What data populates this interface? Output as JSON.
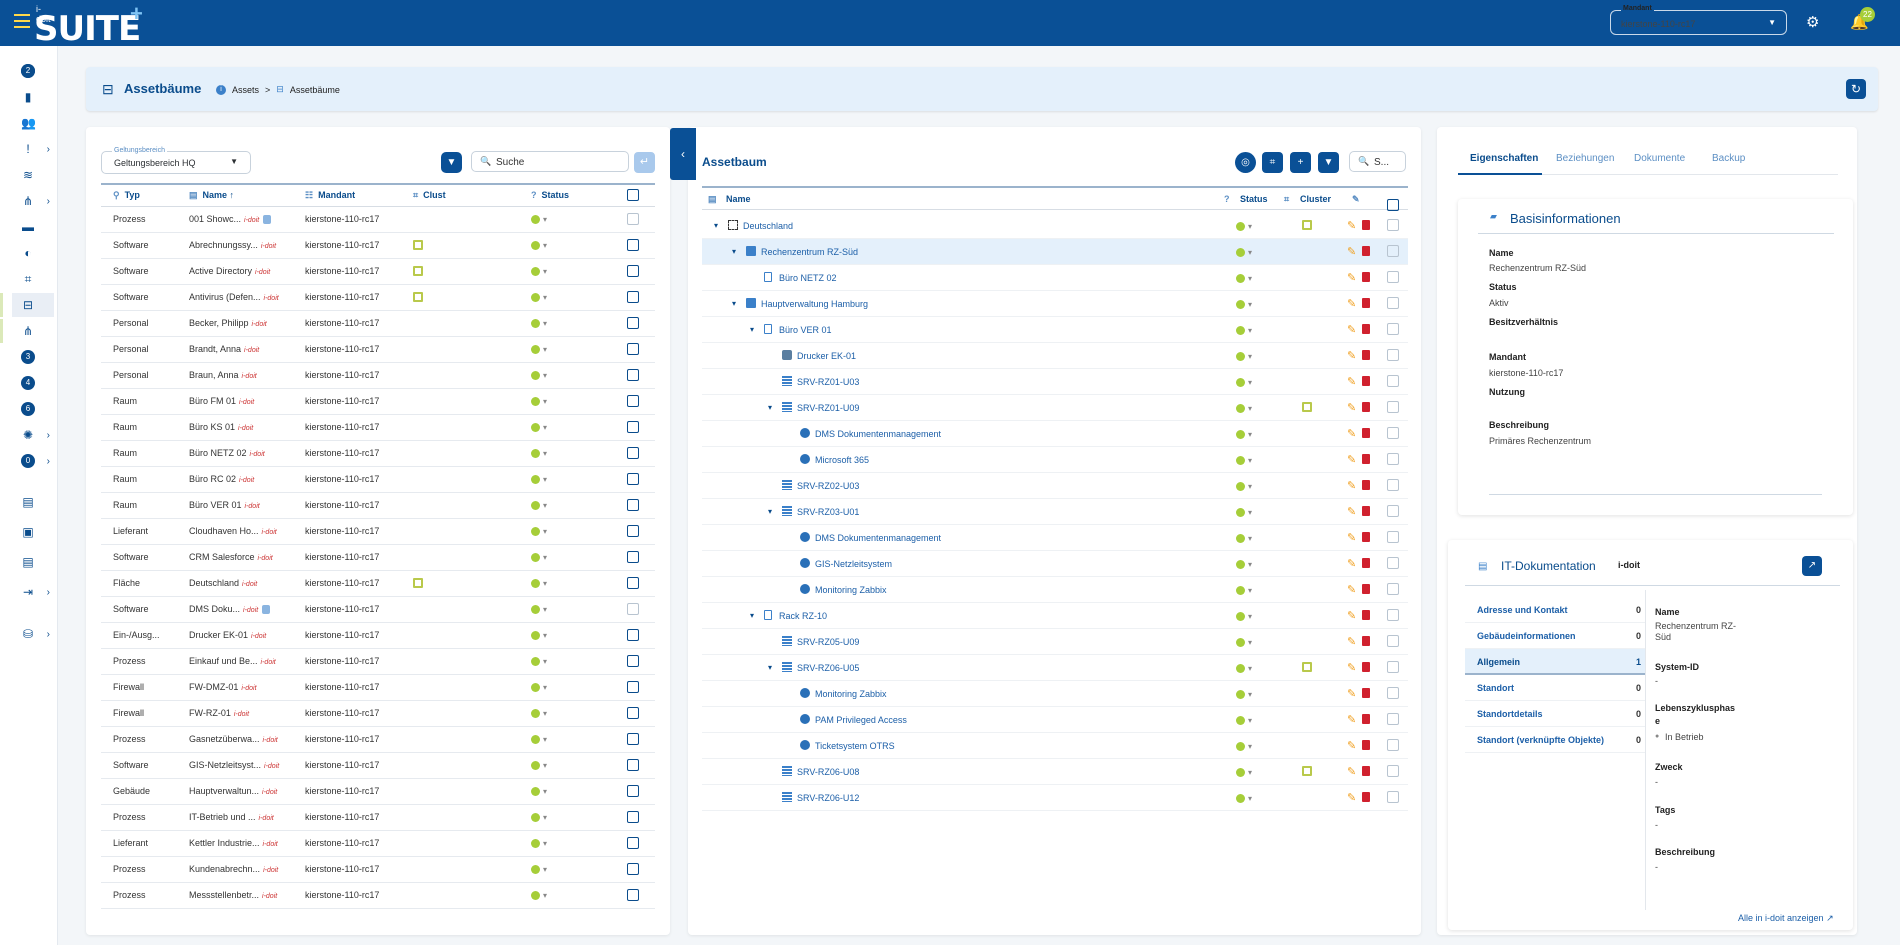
{
  "app": {
    "logo_small": "i-doit",
    "logo_text": "SUITE",
    "logo_plus": "+"
  },
  "topbar": {
    "mandant_label": "Mandant",
    "mandant_value": "kierstone-110-rc17",
    "notification_count": "22"
  },
  "sidebar": {
    "items": [
      {
        "icon": "1",
        "name": "sidebar-item-1"
      },
      {
        "icon": "2",
        "name": "sidebar-item-2"
      },
      {
        "icon": "chart-icon",
        "name": "sidebar-item-charts"
      },
      {
        "icon": "users-icon",
        "name": "sidebar-item-users"
      },
      {
        "icon": "alert-icon",
        "name": "sidebar-item-alerts"
      },
      {
        "icon": "layers-icon",
        "name": "sidebar-item-layers"
      },
      {
        "icon": "hierarchy-icon",
        "name": "sidebar-item-hierarchy"
      },
      {
        "icon": "truck-icon",
        "name": "sidebar-item-truck"
      },
      {
        "icon": "circle-icon",
        "name": "sidebar-item-circle"
      },
      {
        "icon": "scan-icon",
        "name": "sidebar-item-scan"
      },
      {
        "icon": "tree-icon",
        "name": "sidebar-item-asset-tree"
      },
      {
        "icon": "network-icon",
        "name": "sidebar-item-network"
      },
      {
        "icon": "3",
        "name": "sidebar-item-3"
      },
      {
        "icon": "4",
        "name": "sidebar-item-4"
      },
      {
        "icon": "6",
        "name": "sidebar-item-6"
      },
      {
        "icon": "bulb-icon",
        "name": "sidebar-item-bulb"
      },
      {
        "icon": "0",
        "name": "sidebar-item-0"
      },
      {
        "icon": "clipboard-icon",
        "name": "sidebar-item-clipboard"
      },
      {
        "icon": "image-icon",
        "name": "sidebar-item-image"
      },
      {
        "icon": "document-icon",
        "name": "sidebar-item-document"
      },
      {
        "icon": "import-icon",
        "name": "sidebar-item-import"
      },
      {
        "icon": "database-icon",
        "name": "sidebar-item-database"
      }
    ]
  },
  "header": {
    "title": "Assetbäume",
    "breadcrumb": [
      "Assets",
      ">",
      "Assetbäume"
    ]
  },
  "left": {
    "scope_label": "Geltungsbereich",
    "scope_value": "Geltungsbereich HQ",
    "search_placeholder": "Suche",
    "columns": [
      "Typ",
      "Name",
      "Mandant",
      "Clust",
      "Status"
    ],
    "sort_indicator": "↑",
    "rows": [
      {
        "typ": "Prozess",
        "name": "001 Showc...",
        "mandant": "kierstone-110-rc17",
        "cluster": false,
        "lock": true,
        "dim": true
      },
      {
        "typ": "Software",
        "name": "Abrechnungssy...",
        "mandant": "kierstone-110-rc17",
        "cluster": true
      },
      {
        "typ": "Software",
        "name": "Active Directory",
        "mandant": "kierstone-110-rc17",
        "cluster": true
      },
      {
        "typ": "Software",
        "name": "Antivirus (Defen...",
        "mandant": "kierstone-110-rc17",
        "cluster": true
      },
      {
        "typ": "Personal",
        "name": "Becker, Philipp",
        "mandant": "kierstone-110-rc17"
      },
      {
        "typ": "Personal",
        "name": "Brandt, Anna",
        "mandant": "kierstone-110-rc17"
      },
      {
        "typ": "Personal",
        "name": "Braun, Anna",
        "mandant": "kierstone-110-rc17"
      },
      {
        "typ": "Raum",
        "name": "Büro FM 01",
        "mandant": "kierstone-110-rc17"
      },
      {
        "typ": "Raum",
        "name": "Büro KS 01",
        "mandant": "kierstone-110-rc17"
      },
      {
        "typ": "Raum",
        "name": "Büro NETZ 02",
        "mandant": "kierstone-110-rc17"
      },
      {
        "typ": "Raum",
        "name": "Büro RC 02",
        "mandant": "kierstone-110-rc17"
      },
      {
        "typ": "Raum",
        "name": "Büro VER 01",
        "mandant": "kierstone-110-rc17"
      },
      {
        "typ": "Lieferant",
        "name": "Cloudhaven Ho...",
        "mandant": "kierstone-110-rc17"
      },
      {
        "typ": "Software",
        "name": "CRM Salesforce",
        "mandant": "kierstone-110-rc17"
      },
      {
        "typ": "Fläche",
        "name": "Deutschland",
        "mandant": "kierstone-110-rc17",
        "cluster": true
      },
      {
        "typ": "Software",
        "name": "DMS Doku...",
        "mandant": "kierstone-110-rc17",
        "lock": true,
        "dim": true
      },
      {
        "typ": "Ein-/Ausg...",
        "name": "Drucker EK-01",
        "mandant": "kierstone-110-rc17"
      },
      {
        "typ": "Prozess",
        "name": "Einkauf und Be...",
        "mandant": "kierstone-110-rc17"
      },
      {
        "typ": "Firewall",
        "name": "FW-DMZ-01",
        "mandant": "kierstone-110-rc17"
      },
      {
        "typ": "Firewall",
        "name": "FW-RZ-01",
        "mandant": "kierstone-110-rc17"
      },
      {
        "typ": "Prozess",
        "name": "Gasnetzüberwa...",
        "mandant": "kierstone-110-rc17"
      },
      {
        "typ": "Software",
        "name": "GIS-Netzleitsyst...",
        "mandant": "kierstone-110-rc17"
      },
      {
        "typ": "Gebäude",
        "name": "Hauptverwaltun...",
        "mandant": "kierstone-110-rc17"
      },
      {
        "typ": "Prozess",
        "name": "IT-Betrieb und ...",
        "mandant": "kierstone-110-rc17"
      },
      {
        "typ": "Lieferant",
        "name": "Kettler Industrie...",
        "mandant": "kierstone-110-rc17"
      },
      {
        "typ": "Prozess",
        "name": "Kundenabrechn...",
        "mandant": "kierstone-110-rc17"
      },
      {
        "typ": "Prozess",
        "name": "Messstellenbetr...",
        "mandant": "kierstone-110-rc17"
      }
    ]
  },
  "middle": {
    "title": "Assetbaum",
    "search_placeholder": "S...",
    "columns": [
      "Name",
      "Status",
      "Cluster"
    ],
    "rows": [
      {
        "name": "Deutschland",
        "level": 0,
        "toggle": "⌄",
        "icon": "area",
        "cluster": true
      },
      {
        "name": "Rechenzentrum RZ-Süd",
        "level": 1,
        "toggle": "⌄",
        "icon": "room",
        "selected": true
      },
      {
        "name": "Büro NETZ 02",
        "level": 2,
        "icon": "rack"
      },
      {
        "name": "Hauptverwaltung Hamburg",
        "level": 1,
        "toggle": "⌄",
        "icon": "room"
      },
      {
        "name": "Büro VER 01",
        "level": 2,
        "toggle": "⌄",
        "icon": "rack"
      },
      {
        "name": "Drucker EK-01",
        "level": 3,
        "icon": "prn"
      },
      {
        "name": "SRV-RZ01-U03",
        "level": 3,
        "icon": "srv"
      },
      {
        "name": "SRV-RZ01-U09",
        "level": 3,
        "toggle": "⌄",
        "icon": "srv",
        "cluster": true
      },
      {
        "name": "DMS Dokumentenmanagement",
        "level": 4,
        "icon": "app"
      },
      {
        "name": "Microsoft 365",
        "level": 4,
        "icon": "app"
      },
      {
        "name": "SRV-RZ02-U03",
        "level": 3,
        "icon": "srv"
      },
      {
        "name": "SRV-RZ03-U01",
        "level": 3,
        "toggle": "⌄",
        "icon": "srv"
      },
      {
        "name": "DMS Dokumentenmanagement",
        "level": 4,
        "icon": "app"
      },
      {
        "name": "GIS-Netzleitsystem",
        "level": 4,
        "icon": "app"
      },
      {
        "name": "Monitoring Zabbix",
        "level": 4,
        "icon": "app"
      },
      {
        "name": "Rack RZ-10",
        "level": 2,
        "toggle": "⌄",
        "icon": "rack"
      },
      {
        "name": "SRV-RZ05-U09",
        "level": 3,
        "icon": "srv"
      },
      {
        "name": "SRV-RZ06-U05",
        "level": 3,
        "toggle": "⌄",
        "icon": "srv",
        "cluster": true
      },
      {
        "name": "Monitoring Zabbix",
        "level": 4,
        "icon": "app"
      },
      {
        "name": "PAM Privileged Access",
        "level": 4,
        "icon": "app"
      },
      {
        "name": "Ticketsystem OTRS",
        "level": 4,
        "icon": "app"
      },
      {
        "name": "SRV-RZ06-U08",
        "level": 3,
        "icon": "srv",
        "cluster": true
      },
      {
        "name": "SRV-RZ06-U12",
        "level": 3,
        "icon": "srv"
      }
    ]
  },
  "right": {
    "tabs": [
      "Eigenschaften",
      "Beziehungen",
      "Dokumente",
      "Backup"
    ],
    "basis": {
      "title": "Basisinformationen",
      "name_label": "Name",
      "name_value": "Rechenzentrum RZ-Süd",
      "status_label": "Status",
      "status_value": "Aktiv",
      "besitz_label": "Besitzverhältnis",
      "mandant_label": "Mandant",
      "mandant_value": "kierstone-110-rc17",
      "nutzung_label": "Nutzung",
      "beschreibung_label": "Beschreibung",
      "beschreibung_value": "Primäres Rechenzentrum"
    },
    "itdoc": {
      "title": "IT-Dokumentation",
      "brand": "i-doit",
      "list": [
        {
          "label": "Adresse und Kontakt",
          "count": "0"
        },
        {
          "label": "Gebäudeinformationen",
          "count": "0"
        },
        {
          "label": "Allgemein",
          "count": "1",
          "active": true
        },
        {
          "label": "Standort",
          "count": "0"
        },
        {
          "label": "Standortdetails",
          "count": "0"
        },
        {
          "label": "Standort (verknüpfte Objekte)",
          "count": "0"
        }
      ],
      "name_label": "Name",
      "name_value_1": "Rechenzentrum RZ-",
      "name_value_2": "Süd",
      "sysid_label": "System-ID",
      "sysid_value": "-",
      "lz_label_1": "Lebenszyklusphas",
      "lz_label_2": "e",
      "lz_value": "In Betrieb",
      "zweck_label": "Zweck",
      "zweck_value": "-",
      "tags_label": "Tags",
      "tags_value": "-",
      "beschr_label": "Beschreibung",
      "beschr_value": "-",
      "footer_link": "Alle in i-doit anzeigen"
    }
  },
  "colors": {
    "primary": "#0a5096",
    "status_green": "#a6ce39",
    "delete_red": "#d0212e",
    "edit_orange": "#f0a020"
  }
}
